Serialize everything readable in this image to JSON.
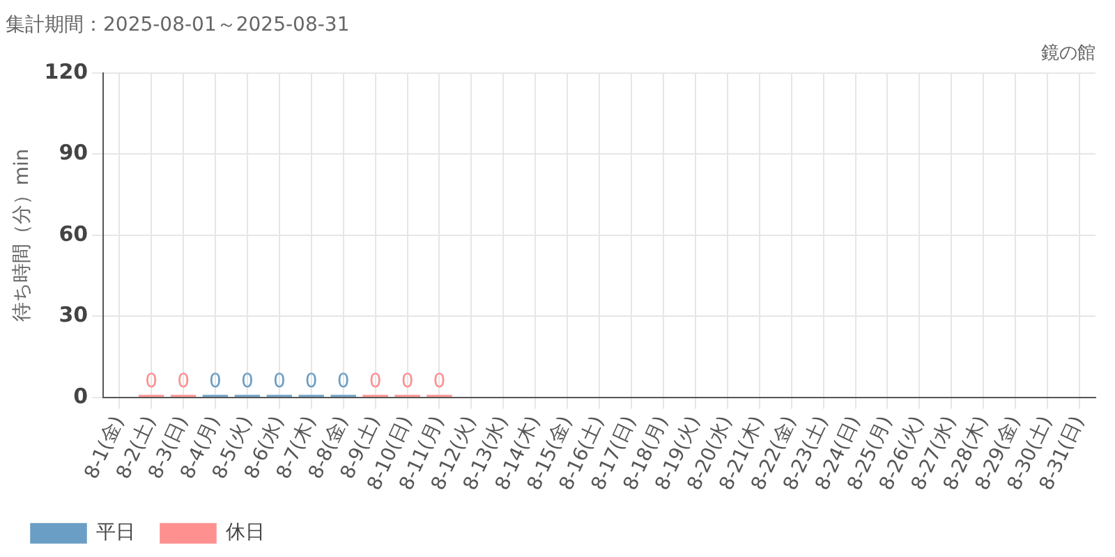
{
  "chart_data": {
    "type": "bar",
    "title": "集計期間：2025-08-01～2025-08-31",
    "subtitle": "鏡の館",
    "ylabel": "待ち時間（分）min",
    "categories": [
      "8-1(金)",
      "8-2(土)",
      "8-3(日)",
      "8-4(月)",
      "8-5(火)",
      "8-6(水)",
      "8-7(木)",
      "8-8(金)",
      "8-9(土)",
      "8-10(日)",
      "8-11(月)",
      "8-12(火)",
      "8-13(水)",
      "8-14(木)",
      "8-15(金)",
      "8-16(土)",
      "8-17(日)",
      "8-18(月)",
      "8-19(火)",
      "8-20(水)",
      "8-21(木)",
      "8-22(金)",
      "8-23(土)",
      "8-24(日)",
      "8-25(月)",
      "8-26(火)",
      "8-27(水)",
      "8-28(木)",
      "8-29(金)",
      "8-30(土)",
      "8-31(日)"
    ],
    "series": [
      {
        "name": "平日",
        "color": "#6a9ec5",
        "values": [
          null,
          null,
          null,
          0,
          0,
          0,
          0,
          0,
          null,
          null,
          null,
          null,
          null,
          null,
          null,
          null,
          null,
          null,
          null,
          null,
          null,
          null,
          null,
          null,
          null,
          null,
          null,
          null,
          null,
          null,
          null
        ]
      },
      {
        "name": "休日",
        "color": "#ff9090",
        "values": [
          null,
          0,
          0,
          null,
          null,
          null,
          null,
          null,
          0,
          0,
          0,
          null,
          null,
          null,
          null,
          null,
          null,
          null,
          null,
          null,
          null,
          null,
          null,
          null,
          null,
          null,
          null,
          null,
          null,
          null,
          null
        ]
      }
    ],
    "ylim": [
      0,
      120
    ],
    "yticks": [
      0,
      30,
      60,
      90,
      120
    ],
    "grid": true,
    "legend": "bottom left",
    "data_labels": true
  }
}
